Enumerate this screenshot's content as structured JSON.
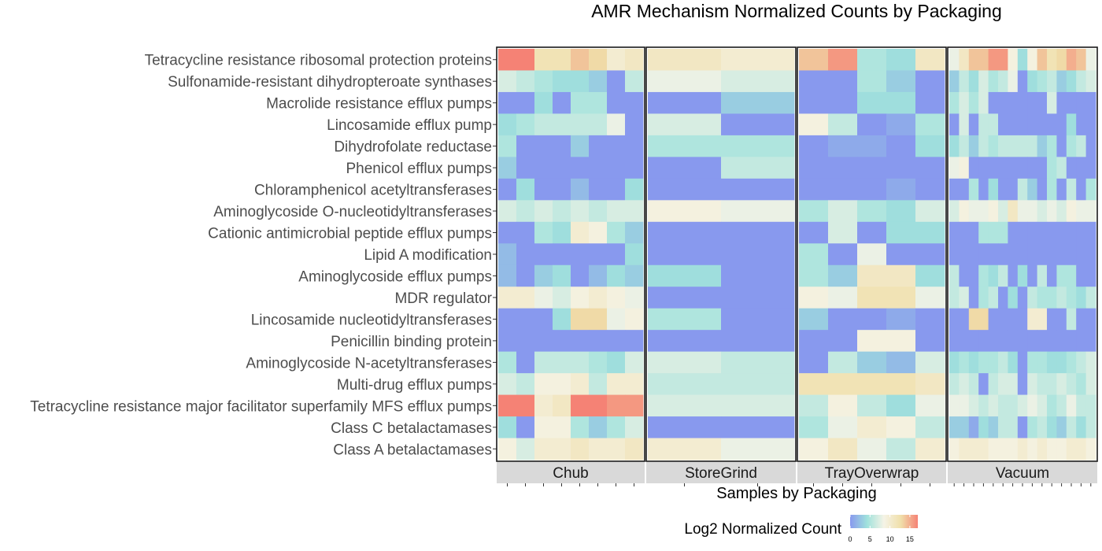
{
  "chart_data": {
    "type": "heatmap",
    "title": "AMR Mechanism Normalized Counts by Packaging",
    "xlabel": "Samples by Packaging",
    "ylabel": "",
    "rows": [
      "Tetracycline resistance ribosomal protection proteins",
      "Sulfonamide-resistant dihydropteroate synthases",
      "Macrolide resistance efflux pumps",
      "Lincosamide efflux pump",
      "Dihydrofolate reductase",
      "Phenicol efflux pumps",
      "Chloramphenicol acetyltransferases",
      "Aminoglycoside O-nucleotidyltransferases",
      "Cationic antimicrobial peptide efflux pumps",
      "Lipid A modification",
      "Aminoglycoside efflux pumps",
      "MDR regulator",
      "Lincosamide nucleotidyltransferases",
      "Penicillin binding protein",
      "Aminoglycoside N-acetyltransferases",
      "Multi-drug efflux pumps",
      "Tetracycline resistance major facilitator superfamily MFS efflux pumps",
      "Class C betalactamases",
      "Class A betalactamases"
    ],
    "facets": [
      {
        "name": "Chub",
        "values": [
          [
            17,
            17,
            12,
            12,
            14,
            13,
            10,
            11
          ],
          [
            7,
            6,
            5,
            4,
            4,
            3,
            0,
            6
          ],
          [
            0,
            0,
            4,
            0,
            5,
            5,
            0,
            0
          ],
          [
            4,
            5,
            6,
            6,
            6,
            6,
            8,
            0
          ],
          [
            5,
            0,
            0,
            0,
            3,
            0,
            0,
            0
          ],
          [
            3,
            0,
            0,
            0,
            0,
            0,
            0,
            0
          ],
          [
            0,
            4,
            0,
            0,
            2,
            0,
            0,
            4
          ],
          [
            7,
            6,
            7,
            6,
            7,
            6,
            7,
            7
          ],
          [
            0,
            0,
            5,
            4,
            10,
            9,
            5,
            3
          ],
          [
            2,
            0,
            0,
            0,
            0,
            0,
            0,
            4
          ],
          [
            2,
            0,
            3,
            4,
            0,
            2,
            4,
            3
          ],
          [
            10,
            10,
            8,
            7,
            9,
            10,
            9,
            8
          ],
          [
            0,
            0,
            0,
            4,
            13,
            13,
            8,
            9
          ],
          [
            0,
            0,
            0,
            0,
            0,
            0,
            0,
            0
          ],
          [
            5,
            0,
            6,
            6,
            6,
            5,
            4,
            7
          ],
          [
            7,
            6,
            9,
            9,
            10,
            6,
            10,
            10
          ],
          [
            17,
            17,
            10,
            11,
            17,
            17,
            16,
            16
          ],
          [
            4,
            0,
            9,
            9,
            5,
            3,
            5,
            7
          ],
          [
            9,
            7,
            10,
            10,
            11,
            10,
            10,
            11
          ]
        ]
      },
      {
        "name": "StoreGrind",
        "values": [
          [
            11,
            10
          ],
          [
            8,
            7
          ],
          [
            0,
            3
          ],
          [
            7,
            0
          ],
          [
            5,
            5
          ],
          [
            0,
            6
          ],
          [
            0,
            0
          ],
          [
            9,
            8
          ],
          [
            0,
            0
          ],
          [
            0,
            0
          ],
          [
            4,
            0
          ],
          [
            0,
            0
          ],
          [
            5,
            0
          ],
          [
            0,
            0
          ],
          [
            7,
            6
          ],
          [
            6,
            6
          ],
          [
            7,
            7
          ],
          [
            0,
            0
          ],
          [
            10,
            8
          ]
        ]
      },
      {
        "name": "TrayOverwrap",
        "values": [
          [
            14,
            16,
            5,
            4,
            11
          ],
          [
            0,
            0,
            5,
            3,
            0
          ],
          [
            0,
            0,
            4,
            4,
            0
          ],
          [
            9,
            6,
            0,
            1,
            5
          ],
          [
            0,
            1,
            1,
            0,
            4
          ],
          [
            0,
            0,
            0,
            0,
            0
          ],
          [
            0,
            0,
            0,
            1,
            0
          ],
          [
            5,
            7,
            5,
            4,
            7
          ],
          [
            0,
            7,
            0,
            4,
            4
          ],
          [
            5,
            0,
            8,
            0,
            0
          ],
          [
            5,
            3,
            11,
            11,
            4
          ],
          [
            9,
            8,
            12,
            12,
            8
          ],
          [
            3,
            0,
            0,
            1,
            0
          ],
          [
            0,
            0,
            9,
            9,
            0
          ],
          [
            0,
            6,
            3,
            2,
            7
          ],
          [
            12,
            12,
            12,
            12,
            11
          ],
          [
            6,
            9,
            6,
            4,
            8
          ],
          [
            5,
            8,
            10,
            9,
            6
          ],
          [
            9,
            11,
            8,
            6,
            10
          ]
        ]
      },
      {
        "name": "Vacuum",
        "values": [
          [
            8,
            11,
            14,
            14,
            16,
            16,
            9,
            4,
            9,
            14,
            12,
            13,
            15,
            14,
            8
          ],
          [
            3,
            6,
            4,
            7,
            5,
            6,
            8,
            0,
            4,
            5,
            6,
            3,
            4,
            6,
            7
          ],
          [
            5,
            7,
            5,
            7,
            0,
            0,
            0,
            0,
            0,
            0,
            7,
            0,
            0,
            0,
            0
          ],
          [
            0,
            7,
            0,
            6,
            6,
            0,
            0,
            0,
            0,
            0,
            0,
            0,
            4,
            0,
            0
          ],
          [
            4,
            6,
            3,
            6,
            5,
            6,
            6,
            6,
            6,
            3,
            5,
            0,
            5,
            6,
            0
          ],
          [
            8,
            9,
            0,
            0,
            0,
            0,
            0,
            0,
            0,
            0,
            5,
            6,
            0,
            0,
            0
          ],
          [
            0,
            0,
            5,
            0,
            4,
            0,
            0,
            6,
            3,
            0,
            5,
            0,
            6,
            0,
            5
          ],
          [
            7,
            9,
            8,
            8,
            9,
            7,
            11,
            8,
            8,
            7,
            8,
            7,
            9,
            8,
            8
          ],
          [
            0,
            0,
            0,
            5,
            5,
            5,
            0,
            0,
            0,
            0,
            0,
            0,
            0,
            0,
            0
          ],
          [
            0,
            0,
            0,
            0,
            0,
            0,
            0,
            0,
            0,
            0,
            0,
            0,
            0,
            0,
            0
          ],
          [
            6,
            0,
            0,
            5,
            4,
            6,
            0,
            4,
            0,
            6,
            0,
            5,
            5,
            0,
            0
          ],
          [
            6,
            7,
            0,
            5,
            6,
            0,
            4,
            0,
            6,
            5,
            5,
            6,
            5,
            4,
            6
          ],
          [
            0,
            0,
            13,
            13,
            0,
            0,
            0,
            0,
            10,
            10,
            0,
            0,
            6,
            0,
            0
          ],
          [
            0,
            0,
            0,
            0,
            0,
            0,
            0,
            0,
            0,
            0,
            0,
            0,
            0,
            0,
            0
          ],
          [
            4,
            5,
            4,
            5,
            5,
            6,
            4,
            0,
            5,
            5,
            4,
            4,
            5,
            6,
            7
          ],
          [
            6,
            7,
            6,
            0,
            6,
            7,
            7,
            0,
            7,
            6,
            6,
            7,
            6,
            5,
            7
          ],
          [
            8,
            8,
            7,
            6,
            7,
            6,
            6,
            7,
            8,
            7,
            5,
            6,
            8,
            6,
            6
          ],
          [
            3,
            3,
            1,
            4,
            3,
            6,
            6,
            0,
            5,
            6,
            4,
            3,
            6,
            4,
            6
          ],
          [
            9,
            10,
            10,
            10,
            9,
            9,
            9,
            10,
            9,
            10,
            9,
            9,
            10,
            10,
            9
          ]
        ]
      }
    ],
    "legend": {
      "title": "Log2 Normalized Count",
      "ticks": [
        "0",
        "5",
        "10",
        "15"
      ],
      "range": [
        0,
        17
      ],
      "position": "bottom",
      "colors": [
        "#8899EE",
        "#A0E2DC",
        "#F5F3E6",
        "#F0DFAA",
        "#F58275"
      ]
    }
  }
}
